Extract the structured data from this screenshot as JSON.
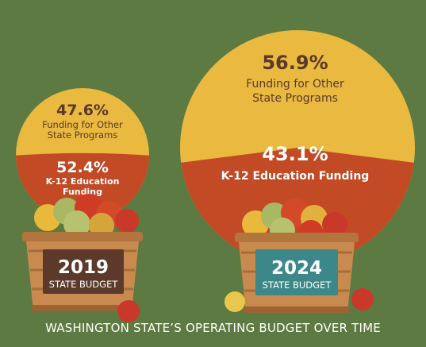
{
  "colors": {
    "background": "#5c7a42",
    "other_programs": "#e9b940",
    "k12": "#c24a25",
    "label_dark": "#5a3a2a",
    "label_light": "#ffffff",
    "basket": "#c98a4f",
    "plaque_2019": "#5b3a2c",
    "plaque_2024": "#3c8889"
  },
  "chart_data": [
    {
      "type": "pie",
      "year": "2019",
      "caption": "STATE BUDGET",
      "slices": [
        {
          "label": "Funding for Other State Programs",
          "value": 47.6,
          "value_text": "47.6%"
        },
        {
          "label": "K-12 Education Funding",
          "value": 52.4,
          "value_text": "52.4%"
        }
      ]
    },
    {
      "type": "pie",
      "year": "2024",
      "caption": "STATE BUDGET",
      "slices": [
        {
          "label": "Funding for Other State Programs",
          "value": 56.9,
          "value_text": "56.9%"
        },
        {
          "label": "K-12 Education Funding",
          "value": 43.1,
          "value_text": "43.1%"
        }
      ]
    }
  ],
  "footer": "WASHINGTON STATE’S OPERATING BUDGET OVER TIME"
}
